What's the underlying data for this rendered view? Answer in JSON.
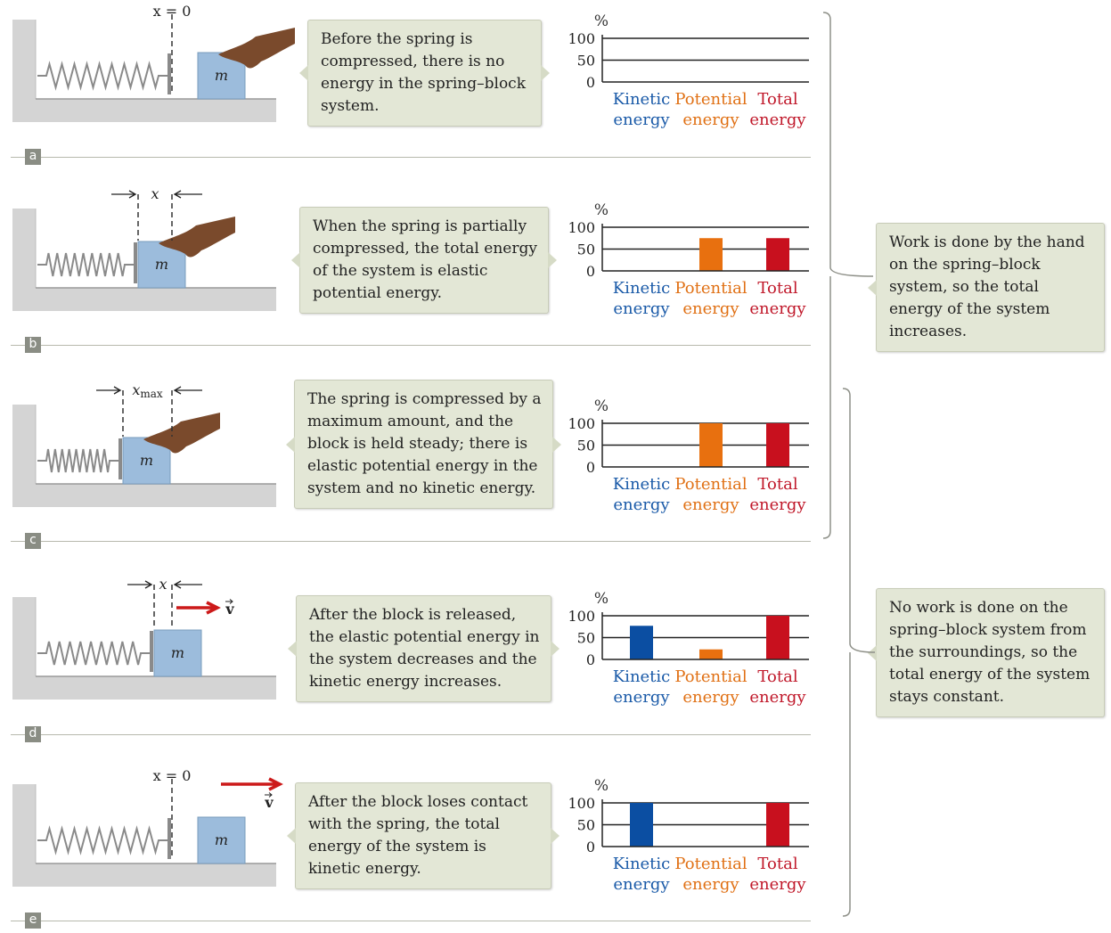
{
  "panels": [
    {
      "label": "a",
      "caption": "Before the spring is compressed, there is no energy in the spring–block system.",
      "scene_label": "x = 0",
      "block_label": "m",
      "bars": {
        "kinetic": 0,
        "potential": 0,
        "total": 0
      }
    },
    {
      "label": "b",
      "caption": "When the spring is partially compressed, the total energy of the system is elastic potential energy.",
      "scene_label": "x",
      "block_label": "m",
      "bars": {
        "kinetic": 0,
        "potential": 75,
        "total": 75
      }
    },
    {
      "label": "c",
      "caption": "The spring is compressed by a maximum amount, and the block is held steady; there is elastic potential energy in the system and no kinetic energy.",
      "scene_label": "x",
      "scene_label_sub": "max",
      "block_label": "m",
      "bars": {
        "kinetic": 0,
        "potential": 100,
        "total": 100
      }
    },
    {
      "label": "d",
      "caption": "After the block is released, the elastic potential energy in the system decreases and the kinetic energy increases.",
      "scene_label": "x",
      "velocity_label": "v",
      "block_label": "m",
      "bars": {
        "kinetic": 77,
        "potential": 23,
        "total": 100
      }
    },
    {
      "label": "e",
      "caption": "After the block loses contact with the spring, the total energy of the system is kinetic energy.",
      "scene_label": "x = 0",
      "velocity_label": "v",
      "block_label": "m",
      "bars": {
        "kinetic": 100,
        "potential": 0,
        "total": 100
      }
    }
  ],
  "chart_axis": {
    "unit": "%",
    "ticks": [
      "100",
      "50",
      "0"
    ],
    "categories": [
      {
        "line1": "Kinetic",
        "line2": "energy",
        "color": "#1a5aa8"
      },
      {
        "line1": "Potential",
        "line2": "energy",
        "color": "#e07014"
      },
      {
        "line1": "Total",
        "line2": "energy",
        "color": "#c0182a"
      }
    ]
  },
  "summaries": {
    "work": "Work is done by the hand on the spring–block system, so the total energy of the system increases.",
    "no_work": "No work is done on the spring–block system from the surroundings, so the total energy of the system stays constant."
  },
  "colors": {
    "kinetic": "#0b4ea2",
    "potential": "#e8700f",
    "total": "#c8101e",
    "block": "#9cbcdc",
    "callout": "#e3e7d6",
    "velocity_arrow": "#cc1a1a",
    "hand": "#7a4a2c"
  }
}
